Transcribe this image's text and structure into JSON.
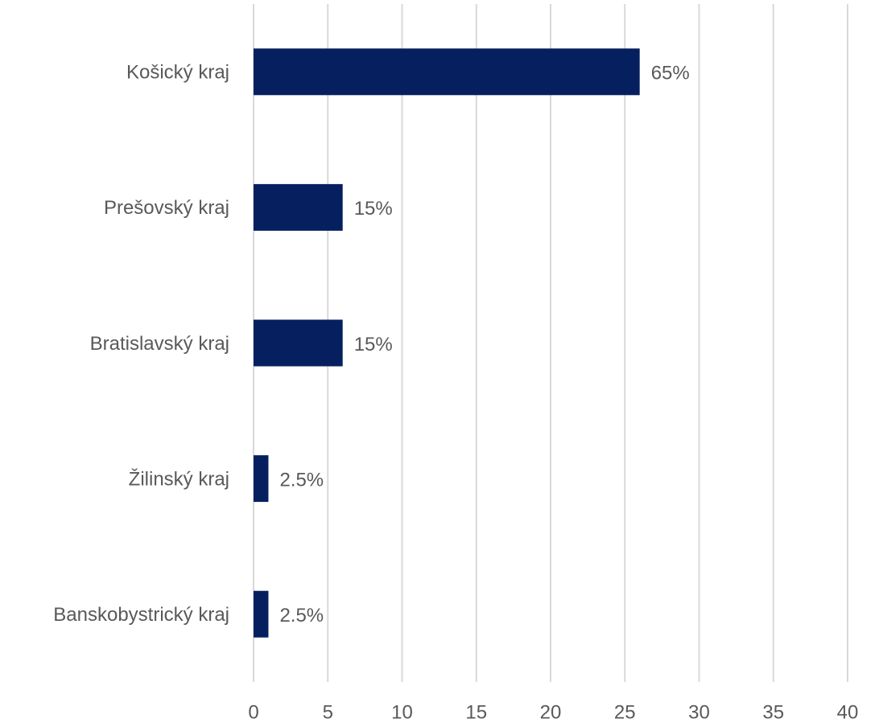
{
  "chart_data": {
    "type": "bar",
    "orientation": "horizontal",
    "categories": [
      "Košický kraj",
      "Prešovský kraj",
      "Bratislavský kraj",
      "Žilinský kraj",
      "Banskobystrický kraj"
    ],
    "values": [
      26,
      6,
      6,
      1,
      1
    ],
    "value_labels": [
      "65%",
      "15%",
      "15%",
      "2.5%",
      "2.5%"
    ],
    "color": "#061f5f",
    "xlim": [
      0,
      40
    ],
    "xticks": [
      0,
      5,
      10,
      15,
      20,
      25,
      30,
      35,
      40
    ],
    "grid": true
  }
}
